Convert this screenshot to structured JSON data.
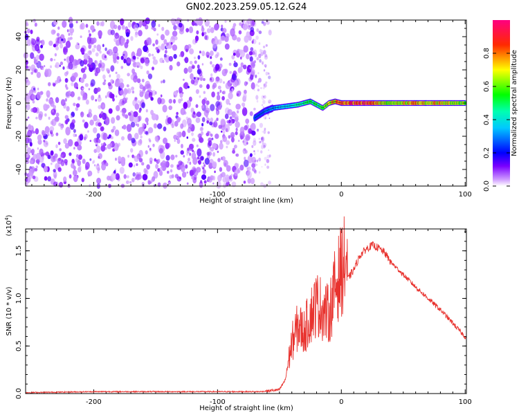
{
  "title": "GN02.2023.259.05.12.G24",
  "chart_data": [
    {
      "type": "heatmap",
      "xlabel": "Height of straight line (km)",
      "ylabel": "Frequency (Hz)",
      "xlim": [
        -255,
        101
      ],
      "ylim": [
        -50,
        50
      ],
      "x_ticks": [
        -200,
        -100,
        0,
        100
      ],
      "y_ticks": [
        -40,
        -20,
        0,
        20,
        40
      ],
      "colorbar": {
        "label": "Normalized spectral amplitude",
        "range": [
          0.0,
          1.0
        ],
        "ticks": [
          "0.0",
          "0.2",
          "0.4",
          "0.6",
          "0.8"
        ],
        "colormap": [
          "#ffffff",
          "#7a00ff",
          "#0000ff",
          "#00ffff",
          "#00ff00",
          "#ffff00",
          "#ff0000",
          "#ff00aa"
        ]
      },
      "noise_region": {
        "x_range": [
          -255,
          -62
        ],
        "freq_range": [
          -50,
          50
        ],
        "amplitude": 0.1
      },
      "ridge": {
        "x": [
          -70,
          -62,
          -55,
          -45,
          -35,
          -25,
          -20,
          -15,
          -10,
          -5,
          0,
          20,
          40,
          60,
          80,
          100
        ],
        "freq": [
          -9,
          -5,
          -3,
          -2,
          -1,
          1,
          -1,
          -3,
          0,
          1,
          0,
          0,
          0,
          0,
          0,
          0
        ],
        "amplitude": [
          0.2,
          0.3,
          0.35,
          0.4,
          0.5,
          0.55,
          0.55,
          0.6,
          0.8,
          0.85,
          0.95,
          1.0,
          0.7,
          0.85,
          0.8,
          0.7
        ]
      },
      "grid": false
    },
    {
      "type": "line",
      "xlabel": "Height of straight line (km)",
      "ylabel": "SNR (10 * v/v)",
      "y_multiplier": "(x10",
      "y_multiplier_exp": "4",
      "y_multiplier_close": ")",
      "xlim": [
        -255,
        101
      ],
      "ylim": [
        0,
        1.73
      ],
      "x_ticks": [
        -200,
        -100,
        0,
        100
      ],
      "y_ticks": [
        "0.0",
        "0.5",
        "1.0",
        "1.5"
      ],
      "color": "#e8322e",
      "series": [
        {
          "x": [
            -255,
            -200,
            -150,
            -100,
            -65,
            -50,
            -45,
            -40,
            -35,
            -30,
            -25,
            -20,
            -15,
            -10,
            -5,
            0,
            5,
            10,
            15,
            20,
            25,
            30,
            35,
            40,
            50,
            60,
            70,
            80,
            90,
            101
          ],
          "values": [
            0.01,
            0.02,
            0.02,
            0.02,
            0.02,
            0.04,
            0.15,
            0.45,
            0.6,
            0.55,
            0.7,
            0.8,
            0.75,
            0.7,
            0.95,
            1.1,
            1.2,
            1.3,
            1.45,
            1.52,
            1.56,
            1.53,
            1.48,
            1.38,
            1.25,
            1.12,
            1.0,
            0.88,
            0.74,
            0.58
          ]
        }
      ],
      "grid": false
    }
  ]
}
